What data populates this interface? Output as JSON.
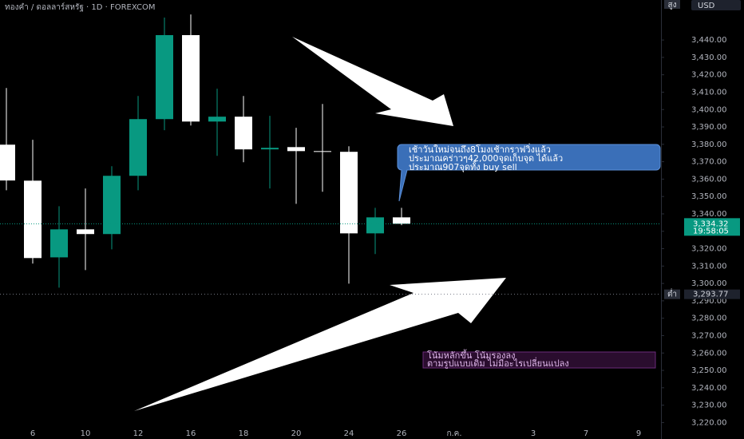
{
  "chart_data": {
    "type": "candlestick",
    "title": "ทองคำ / ดอลลาร์สหรัฐ · 1D · FOREXCOM",
    "currency": "USD",
    "high_tag": "สูง",
    "low_tag": "ต่ำ",
    "categories": [
      null,
      "6",
      null,
      "10",
      null,
      "12",
      null,
      "16",
      null,
      "18",
      null,
      "20",
      null,
      "24",
      null,
      "26",
      null,
      "ก.ค.",
      null,
      null,
      "3",
      null,
      "7",
      null,
      "9"
    ],
    "open": [
      3379.8,
      3359.1,
      3315.0,
      3331.1,
      3328.4,
      3361.9,
      3394.5,
      3442.8,
      3393.1,
      3395.9,
      3377.1,
      3378.4,
      3376.1,
      3375.7,
      3328.8,
      3338.0,
      null,
      null,
      null,
      null,
      null,
      null,
      null,
      null,
      null
    ],
    "high": [
      3412.4,
      3382.6,
      3344.4,
      3354.6,
      3367.4,
      3407.8,
      3452.9,
      3454.7,
      3412.0,
      3407.8,
      3396.4,
      3389.5,
      3403.2,
      3378.9,
      3343.5,
      3343.5,
      null,
      null,
      null,
      null,
      null,
      null,
      null,
      null,
      null
    ],
    "low": [
      3353.6,
      3311.4,
      3297.6,
      3307.7,
      3319.6,
      3353.6,
      3388.1,
      3390.8,
      3373.4,
      3369.7,
      3354.6,
      3345.8,
      3352.7,
      3299.9,
      3316.9,
      3333.5,
      null,
      null,
      null,
      null,
      null,
      null,
      null,
      null,
      null
    ],
    "close": [
      3359.2,
      3314.6,
      3331.1,
      3328.4,
      3361.9,
      3394.5,
      3442.8,
      3393.1,
      3395.9,
      3377.1,
      3378.0,
      3376.1,
      3376.0,
      3328.8,
      3338.0,
      3334.32,
      null,
      null,
      null,
      null,
      null,
      null,
      null,
      null,
      null
    ],
    "up_color": "#089981",
    "down_color": "#ffffff",
    "ylim": [
      3211,
      3463
    ],
    "yticks": [
      {
        "value": 3220,
        "label": "3,220.00"
      },
      {
        "value": 3230,
        "label": "3,230.00"
      },
      {
        "value": 3240,
        "label": "3,240.00"
      },
      {
        "value": 3250,
        "label": "3,250.00"
      },
      {
        "value": 3260,
        "label": "3,260.00"
      },
      {
        "value": 3270,
        "label": "3,270.00"
      },
      {
        "value": 3280,
        "label": "3,280.00"
      },
      {
        "value": 3290,
        "label": "3,290.00"
      },
      {
        "value": 3300,
        "label": "3,300.00"
      },
      {
        "value": 3310,
        "label": "3,310.00"
      },
      {
        "value": 3320,
        "label": "3,320.00"
      },
      {
        "value": 3330,
        "label": "3,330.00"
      },
      {
        "value": 3340,
        "label": "3,340.00"
      },
      {
        "value": 3350,
        "label": "3,350.00"
      },
      {
        "value": 3360,
        "label": "3,360.00"
      },
      {
        "value": 3370,
        "label": "3,370.00"
      },
      {
        "value": 3380,
        "label": "3,380.00"
      },
      {
        "value": 3390,
        "label": "3,390.00"
      },
      {
        "value": 3400,
        "label": "3,400.00"
      },
      {
        "value": 3410,
        "label": "3,410.00"
      },
      {
        "value": 3420,
        "label": "3,420.00"
      },
      {
        "value": 3430,
        "label": "3,430.00"
      },
      {
        "value": 3440,
        "label": "3,440.00"
      }
    ],
    "last_price": {
      "value": 3334.32,
      "label": "3,334.32"
    },
    "countdown": "19:58:05",
    "low_price": {
      "value": 3293.77,
      "label": "3,293.77"
    },
    "callout": [
      "เช้าวันใหม่จนถึง8โมงเช้ากราฟวิ่งแล้ว",
      "ประมาณคร่าวๆ42,000จุดเก็บจุด ได้แล้ว",
      "ประมาณ907จุดทั้ง buy sell"
    ],
    "note": [
      "โน้มหลักขึ้น โน้มรองลง",
      "ตามรูปแบบเดิม ไม่มีอะไรเปลี่ยนแปลง"
    ]
  }
}
